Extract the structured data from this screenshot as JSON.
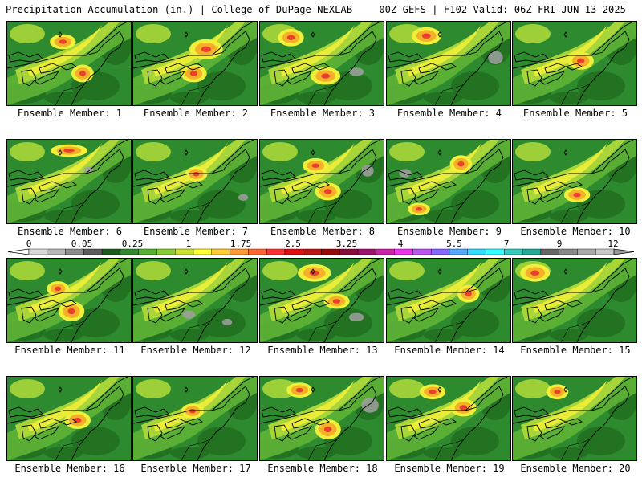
{
  "header": {
    "left": "Precipitation Accumulation (in.) | College of DuPage NEXLAB",
    "right": "00Z GEFS | F102 Valid: 06Z FRI JUN 13 2025"
  },
  "panel_label_prefix": "Ensemble Member: ",
  "panels": [
    {
      "member": "1",
      "heavy": [
        [
          0.38,
          0.18,
          0.14,
          0.12
        ],
        [
          0.55,
          0.55,
          0.12,
          0.14
        ]
      ],
      "gray": []
    },
    {
      "member": "2",
      "heavy": [
        [
          0.5,
          0.25,
          0.18,
          0.16
        ],
        [
          0.42,
          0.55,
          0.14,
          0.14
        ]
      ],
      "gray": []
    },
    {
      "member": "3",
      "heavy": [
        [
          0.18,
          0.12,
          0.14,
          0.14
        ],
        [
          0.45,
          0.58,
          0.16,
          0.14
        ]
      ],
      "gray": [
        [
          0.72,
          0.55,
          0.12,
          0.1
        ]
      ]
    },
    {
      "member": "4",
      "heavy": [
        [
          0.24,
          0.1,
          0.16,
          0.14
        ]
      ],
      "gray": [
        [
          0.82,
          0.35,
          0.12,
          0.16
        ]
      ]
    },
    {
      "member": "5",
      "heavy": [
        [
          0.48,
          0.4,
          0.14,
          0.14
        ]
      ],
      "gray": []
    },
    {
      "member": "6",
      "heavy": [
        [
          0.4,
          0.08,
          0.2,
          0.1
        ]
      ],
      "gray": [
        [
          0.62,
          0.32,
          0.08,
          0.08
        ]
      ]
    },
    {
      "member": "7",
      "heavy": [
        [
          0.45,
          0.35,
          0.12,
          0.12
        ]
      ],
      "gray": [
        [
          0.85,
          0.65,
          0.08,
          0.08
        ]
      ]
    },
    {
      "member": "8",
      "heavy": [
        [
          0.48,
          0.55,
          0.14,
          0.14
        ],
        [
          0.38,
          0.25,
          0.14,
          0.12
        ]
      ],
      "gray": [
        [
          0.82,
          0.3,
          0.1,
          0.14
        ]
      ]
    },
    {
      "member": "9",
      "heavy": [
        [
          0.54,
          0.22,
          0.12,
          0.14
        ],
        [
          0.2,
          0.78,
          0.12,
          0.1
        ]
      ],
      "gray": [
        [
          0.1,
          0.35,
          0.1,
          0.1
        ]
      ]
    },
    {
      "member": "10",
      "heavy": [
        [
          0.45,
          0.6,
          0.14,
          0.12
        ]
      ],
      "gray": []
    },
    {
      "member": "11",
      "heavy": [
        [
          0.45,
          0.55,
          0.14,
          0.16
        ],
        [
          0.35,
          0.3,
          0.12,
          0.12
        ]
      ],
      "gray": []
    },
    {
      "member": "12",
      "heavy": [],
      "gray": [
        [
          0.4,
          0.62,
          0.1,
          0.1
        ],
        [
          0.72,
          0.72,
          0.08,
          0.08
        ]
      ]
    },
    {
      "member": "13",
      "heavy": [
        [
          0.35,
          0.1,
          0.18,
          0.14
        ],
        [
          0.55,
          0.45,
          0.14,
          0.12
        ]
      ],
      "gray": [
        [
          0.72,
          0.65,
          0.12,
          0.1
        ]
      ]
    },
    {
      "member": "14",
      "heavy": [
        [
          0.6,
          0.35,
          0.12,
          0.14
        ]
      ],
      "gray": []
    },
    {
      "member": "15",
      "heavy": [
        [
          0.1,
          0.1,
          0.16,
          0.14
        ]
      ],
      "gray": []
    },
    {
      "member": "16",
      "heavy": [
        [
          0.5,
          0.45,
          0.14,
          0.14
        ]
      ],
      "gray": []
    },
    {
      "member": "17",
      "heavy": [
        [
          0.42,
          0.35,
          0.12,
          0.12
        ]
      ],
      "gray": []
    },
    {
      "member": "18",
      "heavy": [
        [
          0.48,
          0.55,
          0.14,
          0.16
        ],
        [
          0.25,
          0.1,
          0.14,
          0.12
        ]
      ],
      "gray": [
        [
          0.82,
          0.25,
          0.14,
          0.18
        ]
      ]
    },
    {
      "member": "19",
      "heavy": [
        [
          0.55,
          0.3,
          0.14,
          0.14
        ],
        [
          0.3,
          0.12,
          0.14,
          0.12
        ]
      ],
      "gray": []
    },
    {
      "member": "20",
      "heavy": [
        [
          0.3,
          0.12,
          0.12,
          0.12
        ]
      ],
      "gray": []
    }
  ],
  "colorbar": {
    "labels": [
      "0",
      "0.05",
      "0.25",
      "1",
      "1.75",
      "2.5",
      "3.25",
      "4",
      "5.5",
      "7",
      "9",
      "12"
    ],
    "colors": [
      "#d8d8d8",
      "#b8b8b8",
      "#8c8c8c",
      "#5c5c5c",
      "#1e5a1e",
      "#2e8a2e",
      "#52b233",
      "#8acc33",
      "#cde22e",
      "#ffff33",
      "#ffcc33",
      "#ff9933",
      "#ff6633",
      "#ff3333",
      "#e01010",
      "#bb1414",
      "#990a0a",
      "#880c3c",
      "#a0106e",
      "#cc22aa",
      "#ee33ee",
      "#bb55ee",
      "#8866ff",
      "#55aaff",
      "#33ddff",
      "#33ffff",
      "#33ccbb",
      "#22aa99",
      "#666666",
      "#888888",
      "#aaaaaa",
      "#c8c8c8"
    ]
  },
  "palette": {
    "green_dark": "#1f6b1f",
    "green": "#2e8a2e",
    "green_light": "#5fb236",
    "yellow_green": "#a8d63a",
    "yellow": "#f0f03a",
    "orange": "#f5b02a",
    "red": "#e8402a",
    "gray": "#a0a0a0"
  }
}
